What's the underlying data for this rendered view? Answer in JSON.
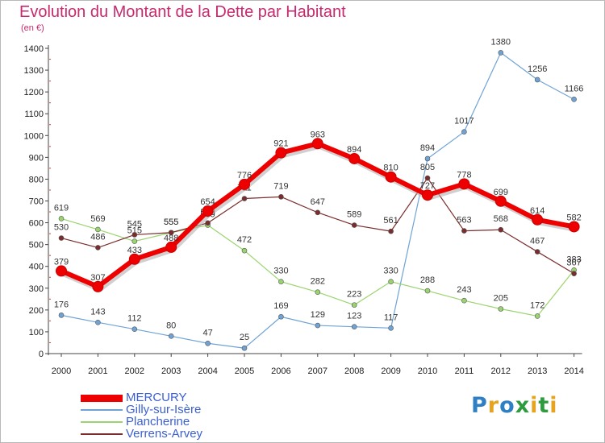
{
  "title": "Evolution du Montant de la Dette par Habitant",
  "unit": "(en €)",
  "logo": {
    "letters": [
      "P",
      "r",
      "o",
      "x",
      "i",
      "t",
      "i"
    ],
    "colors": [
      "#2f7fc4",
      "#e8a31e",
      "#2f7fc4",
      "#2e9c3e",
      "#e8a31e",
      "#2e9c3e",
      "#e8a31e"
    ]
  },
  "chart_data": {
    "type": "line",
    "title": "Evolution du Montant de la Dette par Habitant",
    "ylabel": "(en €)",
    "xlabel": "",
    "x": [
      "2000",
      "2001",
      "2002",
      "2003",
      "2004",
      "2005",
      "2006",
      "2007",
      "2008",
      "2009",
      "2010",
      "2011",
      "2012",
      "2013",
      "2014"
    ],
    "ylim": [
      0,
      1400
    ],
    "yticks": [
      0,
      100,
      200,
      300,
      400,
      500,
      600,
      700,
      800,
      900,
      1000,
      1100,
      1200,
      1300,
      1400
    ],
    "grid": false,
    "legend": "bottom-left",
    "series": [
      {
        "name": "MERCURY",
        "color": "#ee0000",
        "values": [
          379,
          307,
          433,
          488,
          654,
          776,
          921,
          963,
          894,
          810,
          727,
          778,
          699,
          614,
          582
        ],
        "labels": [
          "379",
          "307",
          "433",
          "488",
          "654",
          "776",
          "921",
          "963",
          "894",
          "810",
          "727",
          "778",
          "699",
          "614",
          "582"
        ]
      },
      {
        "name": "Gilly-sur-Isère",
        "color": "#6fa3d6",
        "values": [
          176,
          143,
          112,
          80,
          47,
          25,
          169,
          129,
          123,
          117,
          894,
          1017,
          1380,
          1256,
          1166
        ],
        "labels": [
          "176",
          "143",
          "112",
          "80",
          "47",
          "25",
          "169",
          "129",
          "123",
          "117",
          "894",
          "1017",
          "1380",
          "1256",
          "1166"
        ]
      },
      {
        "name": "Plancherine",
        "color": "#9ad46e",
        "values": [
          619,
          569,
          515,
          555,
          589,
          472,
          330,
          282,
          223,
          330,
          288,
          243,
          205,
          172,
          383
        ],
        "labels": [
          "619",
          "569",
          "515",
          "555",
          "589",
          "472",
          "330",
          "282",
          "223",
          "330",
          "288",
          "243",
          "205",
          "172",
          "383"
        ]
      },
      {
        "name": "Verrens-Arvey",
        "color": "#7b2c2c",
        "values": [
          530,
          486,
          545,
          555,
          599,
          711,
          719,
          647,
          589,
          561,
          805,
          563,
          568,
          467,
          367
        ],
        "labels": [
          "530",
          "486",
          "545",
          "555",
          "599",
          "711",
          "719",
          "647",
          "589",
          "561",
          "805",
          "563",
          "568",
          "467",
          "367"
        ]
      }
    ]
  }
}
